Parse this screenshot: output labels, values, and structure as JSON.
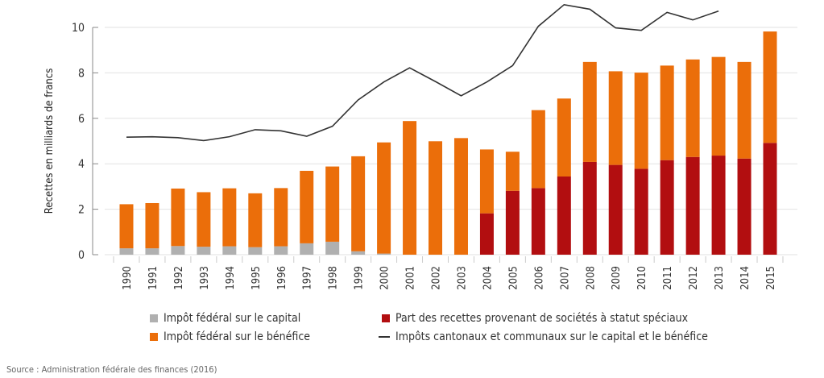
{
  "chart_data": {
    "type": "bar",
    "stacked": true,
    "ylabel": "Recettes en milliards de francs",
    "xlabel": "",
    "ylim": [
      0,
      11
    ],
    "yticks": [
      0,
      2,
      4,
      6,
      8,
      10
    ],
    "grid": true,
    "legend_position": "bottom",
    "categories": [
      "1990",
      "1991",
      "1992",
      "1993",
      "1994",
      "1995",
      "1996",
      "1997",
      "1998",
      "1999",
      "2000",
      "2001",
      "2002",
      "2003",
      "2004",
      "2005",
      "2006",
      "2007",
      "2008",
      "2009",
      "2010",
      "2011",
      "2012",
      "2013",
      "2014",
      "2015"
    ],
    "series": [
      {
        "name": "Impôt fédéral sur le capital",
        "type": "bar",
        "color": "#b0b0b0",
        "values": [
          0.28,
          0.28,
          0.38,
          0.35,
          0.37,
          0.33,
          0.37,
          0.5,
          0.57,
          0.15,
          0.05,
          0,
          0,
          0,
          0,
          0,
          0,
          0,
          0,
          0,
          0,
          0,
          0,
          0,
          0,
          0
        ]
      },
      {
        "name": "Part des recettes provenant de sociétés à statut spéciaux",
        "type": "bar",
        "color": "#b20e10",
        "values": [
          0,
          0,
          0,
          0,
          0,
          0,
          0,
          0,
          0,
          0,
          0,
          0,
          0,
          0,
          1.82,
          2.81,
          2.93,
          3.44,
          4.08,
          3.95,
          3.78,
          4.16,
          4.3,
          4.36,
          4.23,
          4.92
        ]
      },
      {
        "name": "Impôt fédéral sur le bénéfice",
        "type": "bar",
        "color": "#eb6e0a",
        "values": [
          1.94,
          1.99,
          2.53,
          2.4,
          2.55,
          2.37,
          2.56,
          3.19,
          3.31,
          4.18,
          4.89,
          5.88,
          4.99,
          5.13,
          2.81,
          1.72,
          3.43,
          3.43,
          4.4,
          4.12,
          4.23,
          4.16,
          4.29,
          4.34,
          4.25,
          4.9
        ]
      },
      {
        "name": "Impôts cantonaux et communaux sur le capital et le bénéfice",
        "type": "line",
        "color": "#333333",
        "values": [
          5.17,
          5.19,
          5.15,
          5.02,
          5.19,
          5.5,
          5.45,
          5.21,
          5.65,
          6.81,
          7.6,
          8.22,
          7.62,
          6.99,
          7.6,
          8.32,
          10.05,
          11.0,
          10.8,
          9.98,
          9.87,
          10.66,
          10.33,
          10.72,
          null,
          null
        ]
      }
    ],
    "source": "Source : Administration fédérale des finances (2016)"
  }
}
